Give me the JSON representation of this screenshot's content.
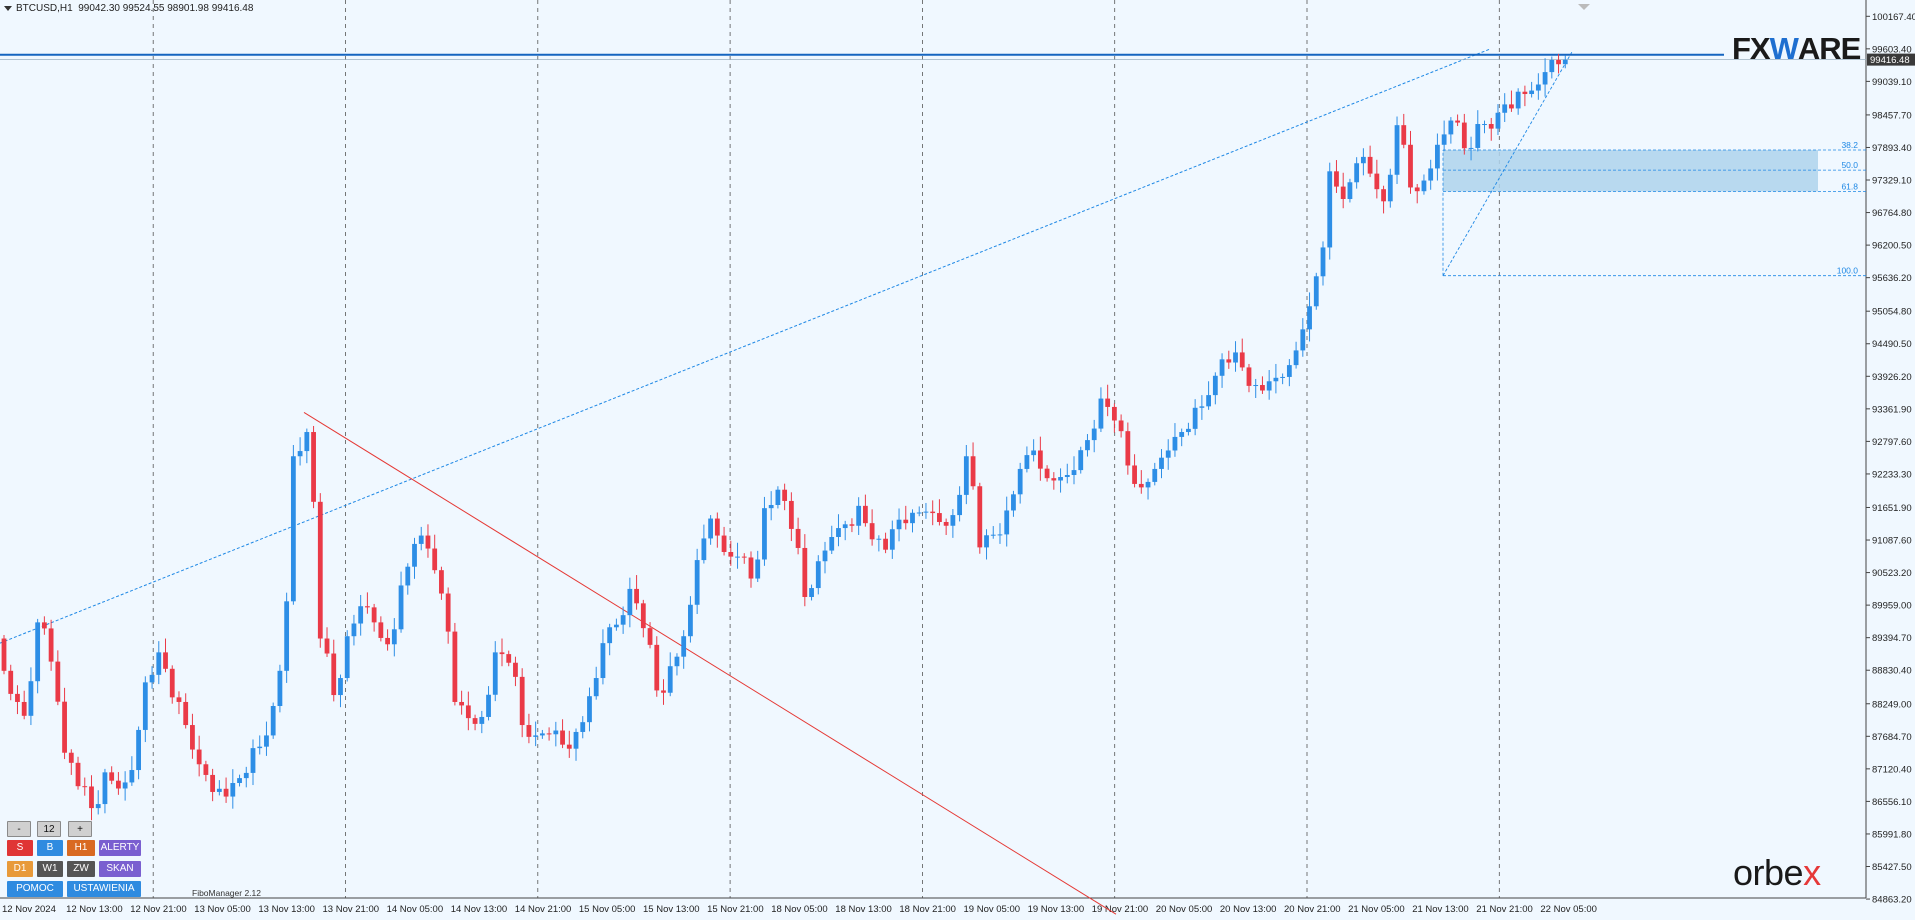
{
  "header": {
    "symbol": "BTCUSD,H1",
    "ohlc": "99042.30 99524.55 98901.98 99416.48"
  },
  "current_price_label": "99416.48",
  "logos": {
    "fxware_a": "FX",
    "fxware_w": "W",
    "fxware_b": "ARE",
    "orbex_a": "orbe",
    "orbex_b": "x"
  },
  "panel": {
    "minus": "-",
    "period": "12",
    "plus": "+",
    "btn_s": "S",
    "btn_b": "B",
    "btn_h1": "H1",
    "btn_alerty": "ALERTY",
    "btn_d1": "D1",
    "btn_w1": "W1",
    "btn_zw": "ZW",
    "btn_skan": "SKAN",
    "btn_pomoc": "POMOC",
    "btn_ustawienia": "USTAWIENIA",
    "fibo_manager": "FiboManager 2.12"
  },
  "colors": {
    "background": "#f0f8ff",
    "bull": "#2d8ee6",
    "bear": "#ea3a47",
    "fibo_zone": "#aed3ec",
    "fibo_line": "#1e88e5",
    "trend_red": "#e53935",
    "price_line": "#1565c0"
  },
  "chart_data": {
    "type": "candlestick",
    "title": "BTCUSD,H1",
    "y_ticks": [
      100167.4,
      99603.4,
      99039.1,
      98457.7,
      97893.4,
      97329.1,
      96764.8,
      96200.5,
      95636.2,
      95054.8,
      94490.5,
      93926.2,
      93361.9,
      92797.6,
      92233.3,
      91651.9,
      91087.6,
      90523.2,
      89959.0,
      89394.7,
      88830.4,
      88249.0,
      87684.7,
      87120.4,
      86556.1,
      85991.8,
      85427.5,
      84863.2
    ],
    "ylim": [
      84500,
      100450
    ],
    "x_ticks": [
      "12 Nov 2024",
      "12 Nov 13:00",
      "12 Nov 21:00",
      "13 Nov 05:00",
      "13 Nov 13:00",
      "13 Nov 21:00",
      "14 Nov 05:00",
      "14 Nov 13:00",
      "14 Nov 21:00",
      "15 Nov 05:00",
      "15 Nov 13:00",
      "15 Nov 21:00",
      "18 Nov 05:00",
      "18 Nov 13:00",
      "18 Nov 21:00",
      "19 Nov 05:00",
      "19 Nov 13:00",
      "19 Nov 21:00",
      "20 Nov 05:00",
      "20 Nov 13:00",
      "20 Nov 21:00",
      "21 Nov 05:00",
      "21 Nov 13:00",
      "21 Nov 21:00",
      "22 Nov 05:00"
    ],
    "close_path": [
      89200,
      88500,
      88000,
      89700,
      88900,
      87400,
      86900,
      86400,
      87100,
      86700,
      87100,
      88700,
      89100,
      88400,
      87800,
      87200,
      86800,
      86600,
      87000,
      87400,
      87700,
      88900,
      92500,
      93000,
      89300,
      88400,
      89500,
      89900,
      89700,
      89200,
      90300,
      91100,
      90900,
      90200,
      88200,
      88000,
      88100,
      89100,
      89000,
      87800,
      87700,
      87800,
      87500,
      87800,
      88300,
      89300,
      89700,
      90200,
      89600,
      88400,
      88900,
      89500,
      90700,
      91500,
      90800,
      90800,
      90500,
      91600,
      92000,
      91200,
      90100,
      90800,
      91100,
      91400,
      91600,
      91100,
      91000,
      91400,
      91600,
      91500,
      91400,
      91600,
      92500,
      91000,
      91100,
      91600,
      92400,
      92600,
      92200,
      92100,
      92300,
      92900,
      93500,
      93200,
      92300,
      92000,
      92400,
      92600,
      93000,
      93300,
      93600,
      94300,
      94300,
      93800,
      93600,
      93900,
      94200,
      94700,
      95700,
      97400,
      97000,
      97700,
      97400,
      97000,
      98200,
      97200,
      97400,
      97900,
      98400,
      97800,
      98300,
      98300,
      98600,
      98900,
      98800,
      99200,
      99416.48
    ],
    "annotations": {
      "current_price": 99416.48,
      "resistance_line": 99500,
      "fibo_levels": [
        {
          "label": "38.2",
          "price": 97850
        },
        {
          "label": "50.0",
          "price": 97500
        },
        {
          "label": "61.8",
          "price": 97130
        },
        {
          "label": "100.0",
          "price": 95670
        }
      ],
      "fibo_swing_low": 95670,
      "fibo_swing_high": 99550,
      "red_trendline": {
        "from_price": 93300,
        "to_price": 84600
      },
      "blue_trendline": {
        "from_price": 89300,
        "to_price": 99600
      }
    }
  }
}
